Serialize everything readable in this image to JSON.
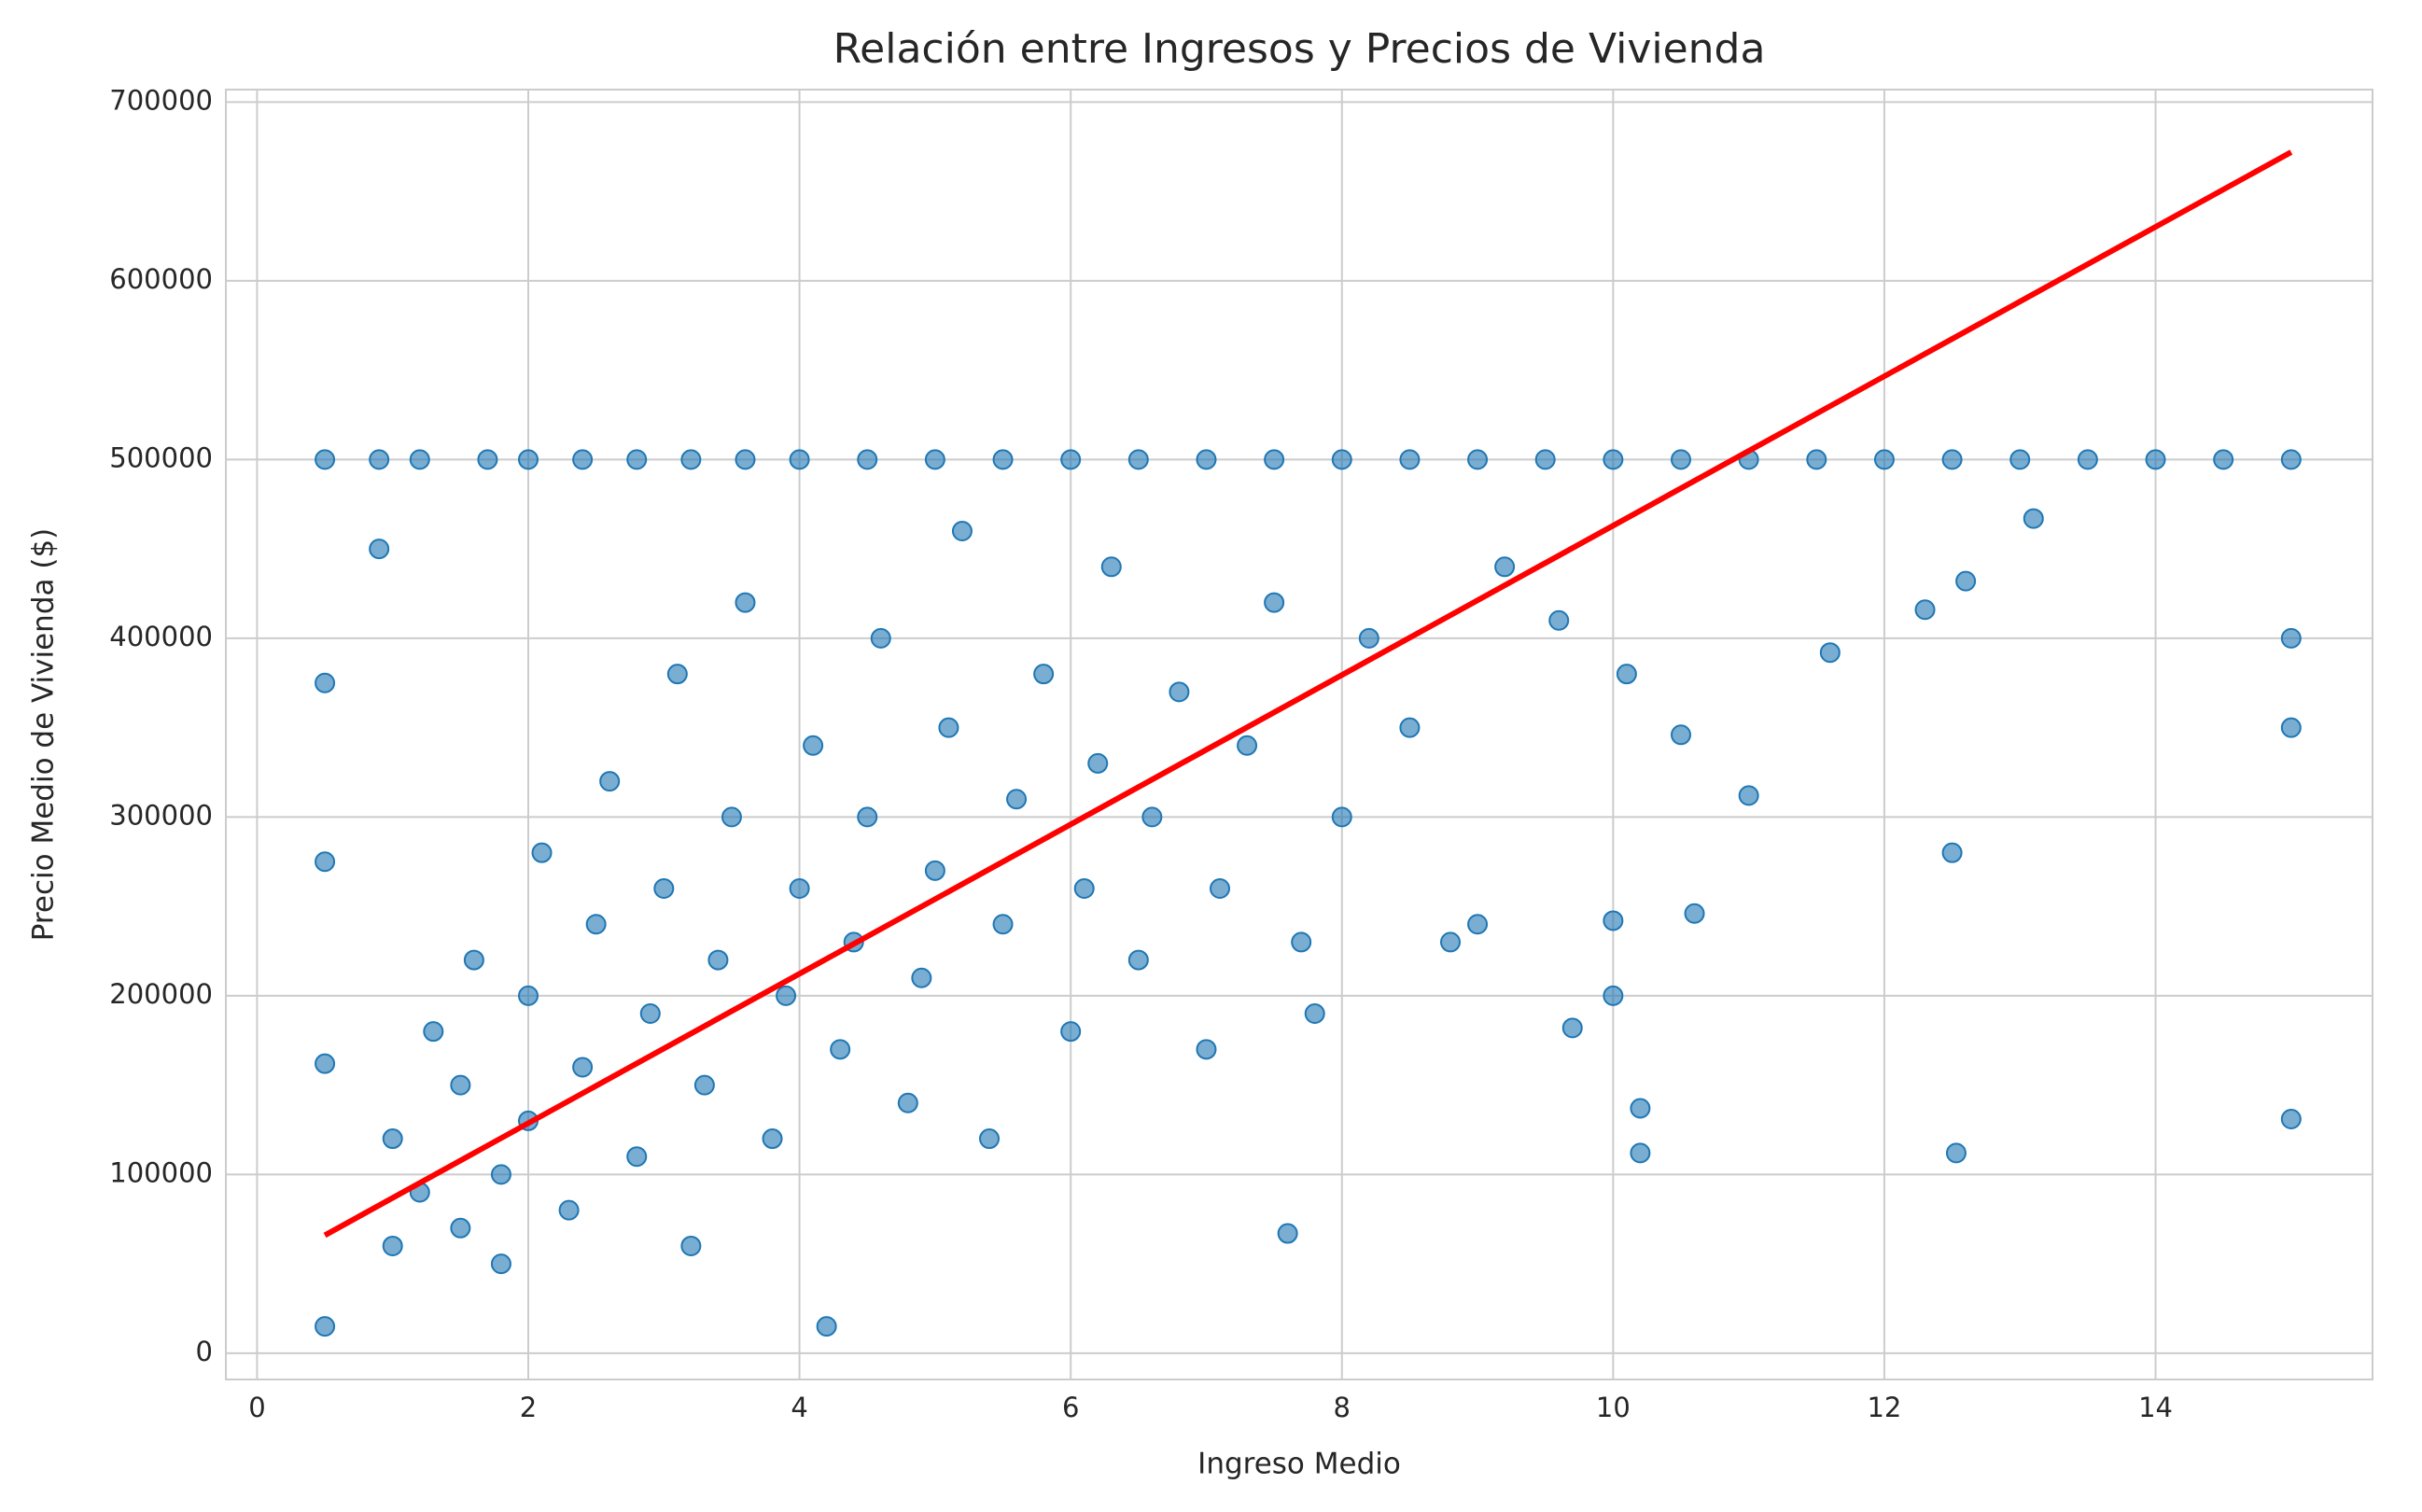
{
  "chart_data": {
    "type": "scatter",
    "title": "Relación entre Ingresos y Precios de Vivienda",
    "x_label": "Ingreso Medio",
    "y_label": "Precio Medio de Vivienda ($)",
    "xlim": [
      -0.23,
      15.6
    ],
    "ylim": [
      -14700,
      707000
    ],
    "xticks": [
      0,
      2,
      4,
      6,
      8,
      10,
      12,
      14
    ],
    "yticks": [
      0,
      100000,
      200000,
      300000,
      400000,
      500000,
      600000,
      700000
    ],
    "grid": true,
    "points": {
      "color": "#1f77b4",
      "opacity": 0.6,
      "x": [
        0.5,
        0.9,
        1.2,
        1.7,
        2.0,
        2.4,
        2.8,
        3.2,
        3.6,
        4.0,
        4.5,
        5.0,
        5.5,
        6.0,
        6.5,
        7.0,
        7.5,
        8.0,
        8.5,
        9.0,
        9.5,
        10.0,
        10.5,
        11.0,
        11.5,
        12.0,
        12.5,
        13.0,
        13.5,
        14.0,
        14.5,
        15.0,
        15.0,
        15.0,
        15.0,
        12.5,
        12.53,
        12.6,
        12.3,
        11.6,
        11.0,
        10.2,
        10.2,
        10.0,
        10.0,
        10.6,
        9.7,
        7.6,
        10.5,
        13.1,
        0.5,
        0.5,
        0.5,
        0.5,
        0.9,
        1.0,
        1.0,
        1.2,
        1.3,
        1.5,
        1.5,
        1.6,
        1.8,
        1.8,
        2.0,
        2.0,
        2.1,
        2.3,
        2.4,
        2.5,
        2.6,
        2.8,
        2.9,
        3.0,
        3.1,
        3.2,
        3.3,
        3.4,
        3.5,
        3.6,
        3.8,
        3.9,
        4.0,
        4.1,
        4.2,
        4.3,
        4.4,
        4.5,
        4.6,
        4.8,
        4.9,
        5.0,
        5.1,
        5.2,
        5.4,
        5.5,
        5.6,
        5.8,
        6.0,
        6.1,
        6.2,
        6.3,
        6.5,
        6.6,
        6.8,
        7.0,
        7.1,
        7.3,
        7.5,
        7.7,
        7.8,
        8.0,
        8.2,
        8.5,
        8.8,
        9.0,
        9.2,
        9.6,
        10.1
      ],
      "y": [
        500000,
        500000,
        500000,
        500000,
        500000,
        500000,
        500000,
        500000,
        500000,
        500000,
        500000,
        500000,
        500000,
        500000,
        500000,
        500000,
        500000,
        500000,
        500000,
        500000,
        500000,
        500000,
        500000,
        500000,
        500000,
        500000,
        500000,
        500000,
        500000,
        500000,
        500000,
        500000,
        400000,
        350000,
        131000,
        280000,
        112000,
        432000,
        416000,
        392000,
        312000,
        137000,
        112000,
        200000,
        242000,
        246000,
        182000,
        67000,
        346000,
        467000,
        15000,
        162000,
        375000,
        275000,
        450000,
        60000,
        120000,
        90000,
        180000,
        70000,
        150000,
        220000,
        100000,
        50000,
        130000,
        200000,
        280000,
        80000,
        160000,
        240000,
        320000,
        110000,
        190000,
        260000,
        380000,
        60000,
        150000,
        220000,
        300000,
        420000,
        120000,
        200000,
        260000,
        340000,
        15000,
        170000,
        230000,
        300000,
        400000,
        140000,
        210000,
        270000,
        350000,
        460000,
        120000,
        240000,
        310000,
        380000,
        180000,
        260000,
        330000,
        440000,
        220000,
        300000,
        370000,
        170000,
        260000,
        340000,
        420000,
        230000,
        190000,
        300000,
        400000,
        350000,
        230000,
        240000,
        440000,
        410000,
        380000
      ]
    },
    "trend_line": {
      "color": "#ff0000",
      "x": [
        0.5,
        15.0
      ],
      "y": [
        66000,
        672000
      ]
    }
  }
}
